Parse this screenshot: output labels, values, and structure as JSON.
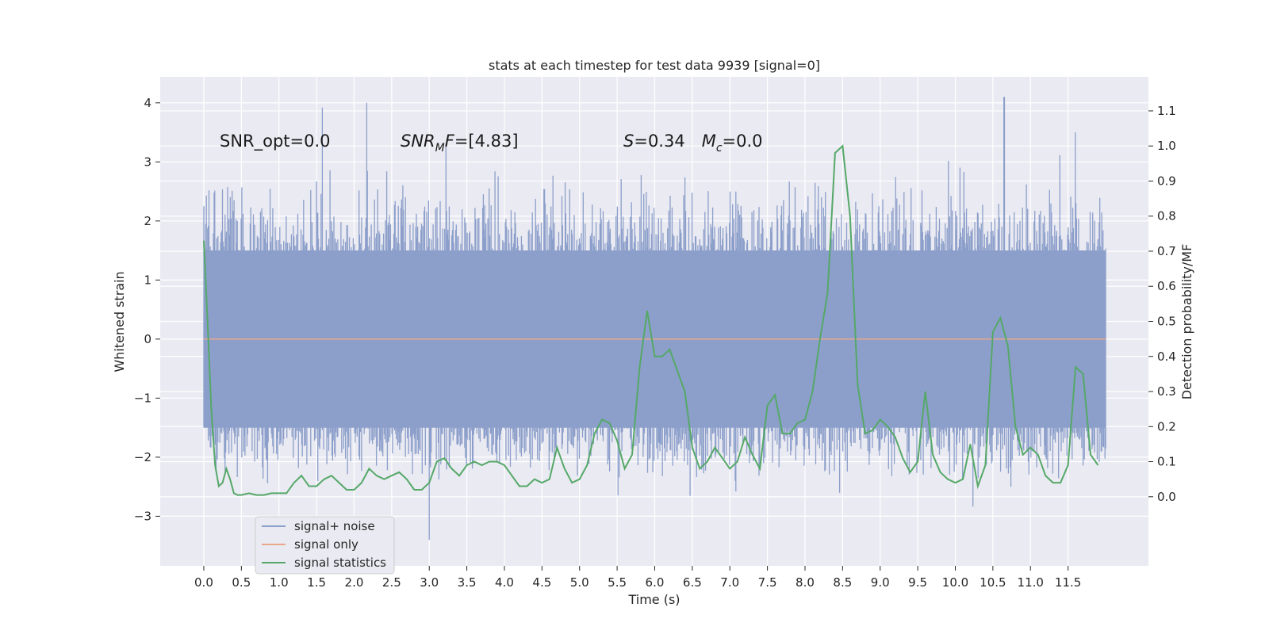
{
  "chart_data": {
    "type": "line",
    "title": "stats at each timestep for test data 9939 [signal=0]",
    "xlabel": "Time (s)",
    "ylabel": "Whitened strain",
    "ylabel_right": "Detection probability/MF",
    "xlim": [
      -0.58,
      12.57
    ],
    "ylim": [
      -3.84,
      4.44
    ],
    "ylim_right": [
      -0.197,
      1.197
    ],
    "x_ticks": [
      "0.0",
      "0.5",
      "1.0",
      "1.5",
      "2.0",
      "2.5",
      "3.0",
      "3.5",
      "4.0",
      "4.5",
      "5.0",
      "5.5",
      "6.0",
      "6.5",
      "7.0",
      "7.5",
      "8.0",
      "8.5",
      "9.0",
      "9.5",
      "10.0",
      "10.5",
      "11.0",
      "11.5"
    ],
    "y_ticks": [
      "4",
      "3",
      "2",
      "1",
      "0",
      "−1",
      "−2",
      "−3"
    ],
    "y_ticks_right": [
      "0.0",
      "0.1",
      "0.2",
      "0.3",
      "0.4",
      "0.5",
      "0.6",
      "0.7",
      "0.8",
      "0.9",
      "1.0",
      "1.1"
    ],
    "grid": true,
    "legend_position": "lower-left",
    "annotations": [
      {
        "id": "snr_opt",
        "text": "SNR_opt=0.0"
      },
      {
        "id": "snr_mf",
        "text": "SNR_MF=[4.83]"
      },
      {
        "id": "s_mc",
        "text": "S=0.34 M_c=0.0"
      }
    ],
    "series": [
      {
        "name": "signal+ noise",
        "color": "#8c9fca",
        "x_range": [
          0.0,
          12.0
        ],
        "description_value": "dense noise strain, roughly within -3.5 to 4.1",
        "notable_peaks": [
          [
            1.58,
            3.92
          ],
          [
            2.17,
            4.0
          ],
          [
            3.22,
            3.3
          ],
          [
            10.65,
            4.1
          ],
          [
            3.0,
            -3.4
          ],
          [
            11.6,
            3.5
          ]
        ]
      },
      {
        "name": "signal only",
        "color": "#e8a88c",
        "x": [
          0.0,
          12.0
        ],
        "y": [
          0.0,
          0.0
        ]
      },
      {
        "name": "signal statistics",
        "color": "#55a868",
        "axis": "right",
        "x": [
          0.0,
          0.05,
          0.1,
          0.15,
          0.2,
          0.25,
          0.3,
          0.35,
          0.4,
          0.45,
          0.5,
          0.6,
          0.7,
          0.8,
          0.9,
          1.0,
          1.1,
          1.2,
          1.3,
          1.4,
          1.5,
          1.6,
          1.7,
          1.8,
          1.9,
          2.0,
          2.1,
          2.2,
          2.3,
          2.4,
          2.5,
          2.6,
          2.7,
          2.8,
          2.9,
          3.0,
          3.1,
          3.2,
          3.3,
          3.4,
          3.5,
          3.6,
          3.7,
          3.8,
          3.9,
          4.0,
          4.1,
          4.2,
          4.3,
          4.4,
          4.5,
          4.6,
          4.7,
          4.8,
          4.9,
          5.0,
          5.1,
          5.2,
          5.3,
          5.4,
          5.5,
          5.6,
          5.7,
          5.8,
          5.9,
          6.0,
          6.1,
          6.2,
          6.3,
          6.4,
          6.5,
          6.6,
          6.7,
          6.8,
          6.9,
          7.0,
          7.1,
          7.2,
          7.3,
          7.4,
          7.5,
          7.6,
          7.7,
          7.8,
          7.9,
          8.0,
          8.1,
          8.2,
          8.3,
          8.4,
          8.5,
          8.6,
          8.7,
          8.8,
          8.9,
          9.0,
          9.1,
          9.2,
          9.3,
          9.4,
          9.5,
          9.6,
          9.7,
          9.8,
          9.9,
          10.0,
          10.1,
          10.2,
          10.3,
          10.4,
          10.5,
          10.6,
          10.7,
          10.8,
          10.9,
          11.0,
          11.1,
          11.2,
          11.3,
          11.4,
          11.5,
          11.6,
          11.7,
          11.8,
          11.9
        ],
        "y": [
          0.73,
          0.5,
          0.25,
          0.09,
          0.03,
          0.04,
          0.08,
          0.05,
          0.01,
          0.005,
          0.005,
          0.01,
          0.005,
          0.005,
          0.01,
          0.01,
          0.01,
          0.04,
          0.06,
          0.03,
          0.03,
          0.05,
          0.06,
          0.04,
          0.02,
          0.02,
          0.04,
          0.08,
          0.06,
          0.05,
          0.06,
          0.07,
          0.05,
          0.02,
          0.02,
          0.04,
          0.1,
          0.11,
          0.08,
          0.06,
          0.09,
          0.1,
          0.09,
          0.1,
          0.1,
          0.09,
          0.06,
          0.03,
          0.03,
          0.05,
          0.04,
          0.05,
          0.14,
          0.08,
          0.04,
          0.05,
          0.09,
          0.18,
          0.22,
          0.21,
          0.16,
          0.08,
          0.12,
          0.37,
          0.53,
          0.4,
          0.4,
          0.42,
          0.36,
          0.3,
          0.14,
          0.08,
          0.1,
          0.14,
          0.11,
          0.08,
          0.1,
          0.17,
          0.12,
          0.08,
          0.26,
          0.29,
          0.18,
          0.18,
          0.21,
          0.22,
          0.3,
          0.45,
          0.58,
          0.98,
          1.0,
          0.8,
          0.32,
          0.18,
          0.19,
          0.22,
          0.2,
          0.17,
          0.11,
          0.07,
          0.1,
          0.3,
          0.12,
          0.07,
          0.05,
          0.04,
          0.05,
          0.15,
          0.03,
          0.09,
          0.47,
          0.51,
          0.43,
          0.2,
          0.12,
          0.14,
          0.12,
          0.06,
          0.04,
          0.04,
          0.09,
          0.37,
          0.35,
          0.12,
          0.09
        ]
      }
    ]
  }
}
